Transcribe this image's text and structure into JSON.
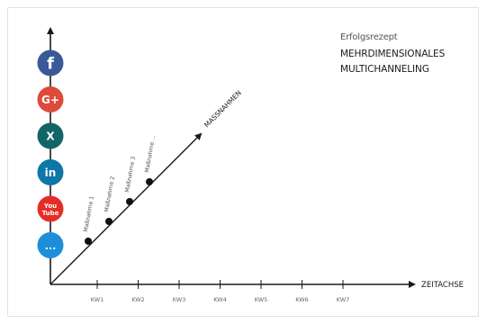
{
  "header": {
    "subtitle": "Erfolgsrezept",
    "title_line_1": "MEHRDIMENSIONALES",
    "title_line_2": "MULTICHANNELING"
  },
  "axes": {
    "x_label": "ZEITACHSE",
    "diagonal_label": "MASSNAHMEN",
    "x_ticks": [
      "KW1",
      "KW2",
      "KW3",
      "KW4",
      "KW5",
      "KW6",
      "KW7"
    ]
  },
  "measures": [
    "Maßnahme 1",
    "Maßnahme 2",
    "Maßnahme 3",
    "Maßnahme ..."
  ],
  "channels": [
    {
      "icon": "facebook-icon",
      "label": "f",
      "color": "#3b5998"
    },
    {
      "icon": "google-plus-icon",
      "label": "G+",
      "color": "#dd4b39"
    },
    {
      "icon": "xing-icon",
      "label": "X",
      "color": "#126567"
    },
    {
      "icon": "linkedin-icon",
      "label": "in",
      "color": "#0e76a8"
    },
    {
      "icon": "youtube-icon",
      "label": "You Tube",
      "color": "#e52d27"
    },
    {
      "icon": "more-icon",
      "label": "...",
      "color": "#1d8fd8"
    }
  ],
  "colors": {
    "axis": "#1a1a1a",
    "tick_text": "#666666"
  }
}
